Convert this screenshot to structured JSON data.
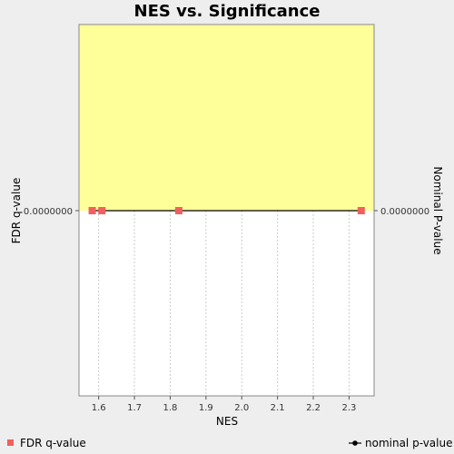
{
  "chart_data": {
    "type": "scatter",
    "title": "NES vs. Significance",
    "xlabel": "NES",
    "ylabel_left": "FDR q-value",
    "ylabel_right": "Nominal P-value",
    "x_ticks": [
      "1.6",
      "1.7",
      "1.8",
      "1.9",
      "2.0",
      "2.1",
      "2.2",
      "2.3"
    ],
    "x_tick_values": [
      1.6,
      1.7,
      1.8,
      1.9,
      2.0,
      2.1,
      2.2,
      2.3
    ],
    "xlim": [
      1.545,
      2.37
    ],
    "y_tick_left": "0.0000000",
    "y_tick_right": "0.0000000",
    "grid": true,
    "legend_position": "bottom",
    "colors": {
      "significant_region": "#ffff99",
      "fdr_marker": "#f15f5f",
      "nominal_line": "#000000",
      "plot_background": "#ffffff",
      "gridline": "#cccccc"
    },
    "series": [
      {
        "name": "FDR q-value",
        "marker": "square",
        "points": [
          {
            "x": 1.582,
            "y": 0.0
          },
          {
            "x": 1.609,
            "y": 0.0
          },
          {
            "x": 1.824,
            "y": 0.0
          },
          {
            "x": 2.334,
            "y": 0.0
          }
        ]
      },
      {
        "name": "nominal p-value",
        "marker": "line",
        "points": [
          {
            "x": 1.582,
            "y": 0.0
          },
          {
            "x": 1.609,
            "y": 0.0
          },
          {
            "x": 1.824,
            "y": 0.0
          },
          {
            "x": 2.334,
            "y": 0.0
          }
        ]
      }
    ]
  },
  "legend": {
    "fdr_label": "FDR q-value",
    "nominal_label": "nominal p-value"
  }
}
